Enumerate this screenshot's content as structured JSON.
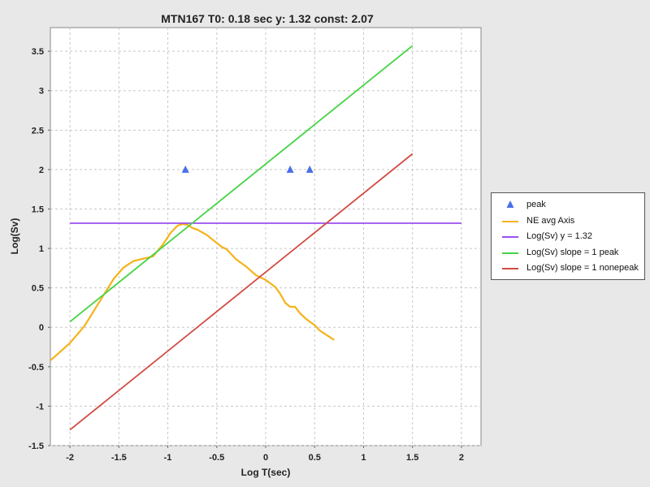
{
  "chart_data": {
    "type": "line",
    "title": "MTN167 T0: 0.18 sec  y: 1.32 const: 2.07",
    "xlabel": "Log T(sec)",
    "ylabel": "Log(Sv)",
    "xlim": [
      -2.2,
      2.2
    ],
    "ylim": [
      -1.5,
      3.8
    ],
    "x_ticks": [
      -2,
      -1.5,
      -1,
      -0.5,
      0,
      0.5,
      1,
      1.5,
      2
    ],
    "x_tick_labels": [
      "-2",
      "-1.5",
      "-1",
      "-0.5",
      "0",
      "0.5",
      "1",
      "1.5",
      "2"
    ],
    "y_ticks": [
      -1.5,
      -1,
      -0.5,
      0,
      0.5,
      1,
      1.5,
      2,
      2.5,
      3,
      3.5
    ],
    "y_tick_labels": [
      "-1.5",
      "-1",
      "-0.5",
      "0",
      "0.5",
      "1",
      "1.5",
      "2",
      "2.5",
      "3",
      "3.5"
    ],
    "grid": true,
    "legend_position": "right",
    "series": [
      {
        "name": "peak",
        "kind": "scatter",
        "marker": "triangle",
        "color": "#4a6fe8",
        "x": [
          -0.82,
          0.25,
          0.45
        ],
        "y": [
          2.0,
          2.0,
          2.0
        ]
      },
      {
        "name": "NE avg Axis",
        "kind": "line",
        "color": "#f5b31a",
        "x": [
          -2.2,
          -2.0,
          -1.85,
          -1.7,
          -1.55,
          -1.45,
          -1.35,
          -1.25,
          -1.15,
          -1.05,
          -0.97,
          -0.9,
          -0.85,
          -0.8,
          -0.75,
          -0.7,
          -0.6,
          -0.5,
          -0.45,
          -0.4,
          -0.3,
          -0.2,
          -0.1,
          0.0,
          0.1,
          0.15,
          0.2,
          0.25,
          0.3,
          0.35,
          0.4,
          0.45,
          0.5,
          0.55,
          0.6,
          0.65,
          0.7
        ],
        "y": [
          -0.42,
          -0.2,
          0.02,
          0.32,
          0.62,
          0.76,
          0.84,
          0.87,
          0.9,
          1.05,
          1.2,
          1.29,
          1.31,
          1.3,
          1.26,
          1.24,
          1.17,
          1.07,
          1.02,
          0.99,
          0.86,
          0.77,
          0.66,
          0.6,
          0.51,
          0.42,
          0.31,
          0.26,
          0.26,
          0.18,
          0.12,
          0.07,
          0.03,
          -0.04,
          -0.08,
          -0.12,
          -0.16
        ]
      },
      {
        "name": "Log(Sv) y = 1.32",
        "kind": "line",
        "color": "#9b4ff0",
        "x": [
          -2.0,
          2.0
        ],
        "y": [
          1.32,
          1.32
        ]
      },
      {
        "name": "Log(Sv) slope = 1 peak",
        "kind": "line",
        "color": "#44d444",
        "x": [
          -2.0,
          1.5
        ],
        "y": [
          0.07,
          3.57
        ]
      },
      {
        "name": "Log(Sv) slope = 1 nonepeak",
        "kind": "line",
        "color": "#d24a43",
        "x": [
          -2.0,
          1.5
        ],
        "y": [
          -1.3,
          2.2
        ]
      }
    ]
  }
}
